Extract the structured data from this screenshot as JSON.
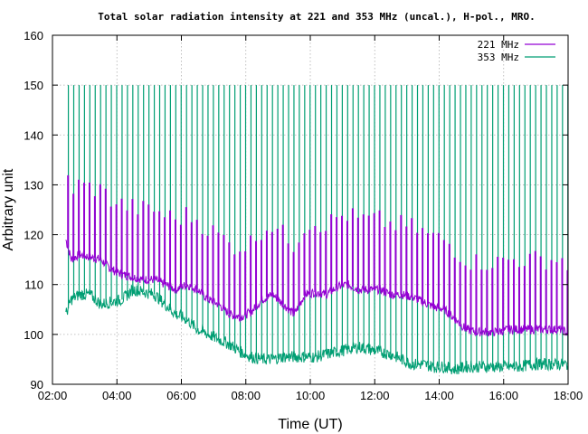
{
  "chart_data": {
    "type": "line",
    "title": "Total solar radiation intensity at 221 and 353 MHz (uncal.), H-pol., MRO.",
    "xlabel": "Time (UT)",
    "ylabel": "Arbitrary unit",
    "xlim": [
      "02:00",
      "18:00"
    ],
    "ylim": [
      90,
      160
    ],
    "xticks": [
      "02:00",
      "04:00",
      "06:00",
      "08:00",
      "10:00",
      "12:00",
      "14:00",
      "16:00",
      "18:00"
    ],
    "yticks": [
      90,
      100,
      110,
      120,
      130,
      140,
      150,
      160
    ],
    "grid": true,
    "legend_position": "top-right",
    "spike_level": 150,
    "series": [
      {
        "name": "221 MHz",
        "color": "#9400d3",
        "x": [
          "02:25",
          "02:35",
          "02:50",
          "03:10",
          "03:30",
          "03:50",
          "04:10",
          "04:30",
          "04:50",
          "05:10",
          "05:30",
          "05:50",
          "06:10",
          "06:30",
          "06:50",
          "07:10",
          "07:30",
          "07:50",
          "08:10",
          "08:30",
          "08:50",
          "09:10",
          "09:30",
          "09:50",
          "10:10",
          "10:30",
          "10:50",
          "11:10",
          "11:30",
          "11:50",
          "12:10",
          "12:30",
          "12:50",
          "13:10",
          "13:30",
          "13:50",
          "14:10",
          "14:30",
          "14:50",
          "15:10",
          "15:30",
          "15:50",
          "16:10",
          "16:30",
          "16:50",
          "17:10",
          "17:30",
          "17:50",
          "18:00"
        ],
        "values": [
          119,
          115,
          116,
          115.5,
          115,
          113,
          112,
          111.5,
          111,
          111,
          110,
          109,
          110,
          109,
          107,
          106,
          104,
          103.5,
          104.5,
          107,
          108,
          106,
          104,
          108,
          108.5,
          108,
          109.5,
          110,
          109,
          109,
          109,
          108,
          108,
          107.5,
          106.5,
          105.5,
          105,
          103,
          101,
          100.5,
          100.5,
          100.5,
          101,
          101,
          101,
          101,
          101,
          101,
          100
        ]
      },
      {
        "name": "353 MHz",
        "color": "#009e73",
        "x": [
          "02:25",
          "02:35",
          "02:50",
          "03:10",
          "03:30",
          "03:50",
          "04:10",
          "04:30",
          "04:50",
          "05:10",
          "05:30",
          "05:50",
          "06:10",
          "06:30",
          "06:50",
          "07:10",
          "07:30",
          "07:50",
          "08:10",
          "08:30",
          "08:50",
          "09:10",
          "09:30",
          "09:50",
          "10:10",
          "10:30",
          "10:50",
          "11:10",
          "11:30",
          "11:50",
          "12:10",
          "12:30",
          "12:50",
          "13:10",
          "13:30",
          "13:50",
          "14:10",
          "14:30",
          "14:50",
          "15:10",
          "15:30",
          "15:50",
          "16:10",
          "16:30",
          "16:50",
          "17:10",
          "17:30",
          "17:50",
          "18:00"
        ],
        "values": [
          104,
          107,
          108,
          108,
          106,
          106.5,
          107,
          109,
          108.5,
          108,
          106,
          104,
          103,
          101,
          100,
          99,
          98,
          96.5,
          95.5,
          95,
          95,
          95.5,
          95.5,
          95.5,
          95.5,
          96,
          96.5,
          97,
          97.5,
          97,
          96.5,
          96,
          95,
          94,
          94,
          93.5,
          93.5,
          93,
          93.5,
          93.5,
          93.5,
          93.5,
          93.5,
          93.5,
          94,
          94,
          94,
          94,
          94
        ]
      }
    ]
  }
}
